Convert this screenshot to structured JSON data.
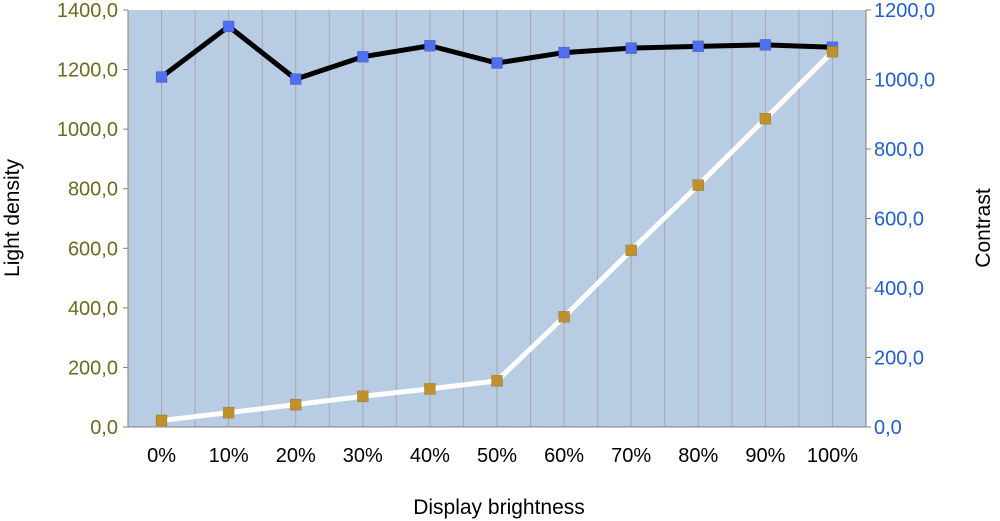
{
  "chart_data": {
    "type": "line",
    "xlabel": "Display brightness",
    "ylabel": "Light density",
    "y2label": "Contrast",
    "categories": [
      "0%",
      "10%",
      "20%",
      "30%",
      "40%",
      "50%",
      "60%",
      "70%",
      "80%",
      "90%",
      "100%"
    ],
    "ylim": [
      0,
      1400
    ],
    "y2lim": [
      0,
      1200
    ],
    "yticks": [
      "0,0",
      "200,0",
      "400,0",
      "600,0",
      "800,0",
      "1000,0",
      "1200,0",
      "1400,0"
    ],
    "y2ticks": [
      "0,0",
      "200,0",
      "400,0",
      "600,0",
      "800,0",
      "1000,0",
      "1200,0"
    ],
    "grid": "vertical",
    "legend": "none",
    "series": [
      {
        "axis": "left",
        "line_color": "#000000",
        "marker_color": "#4f6ef0",
        "values": [
          1175,
          1345,
          1168,
          1243,
          1280,
          1222,
          1257,
          1272,
          1278,
          1283,
          1275
        ]
      },
      {
        "axis": "left",
        "line_color": "#ffffff",
        "marker_color": "#c0902a",
        "values": [
          22,
          48,
          75,
          103,
          128,
          155,
          370,
          593,
          812,
          1035,
          1260
        ]
      }
    ],
    "colors": {
      "plot_background": "#b8cce4",
      "grid": "#a8a8a8",
      "left_tick_text": "#6b6b1e",
      "right_tick_text": "#1f5ed8"
    }
  }
}
